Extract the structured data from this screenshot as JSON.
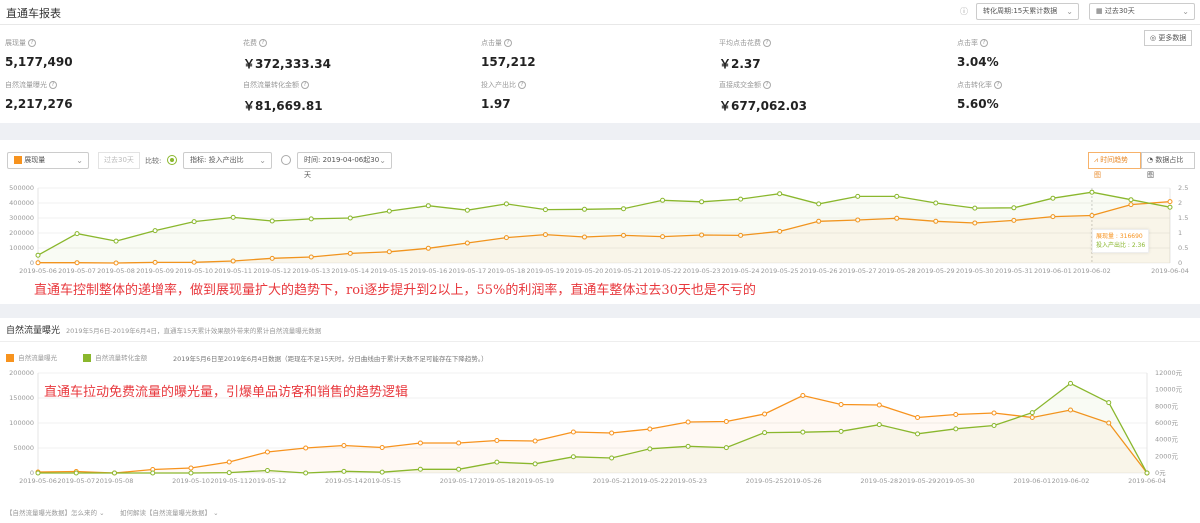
{
  "header": {
    "title": "直通车报表",
    "info_icon": "info-circle-icon",
    "conversion_select": "转化周期:15天累计数据",
    "date_select": "过去30天",
    "calendar_icon": "calendar-icon",
    "more_data_button": "更多数据"
  },
  "metrics": [
    {
      "label": "展现量",
      "value": "5,177,490"
    },
    {
      "label": "花费",
      "value": "￥372,333.34"
    },
    {
      "label": "点击量",
      "value": "157,212"
    },
    {
      "label": "平均点击花费",
      "value": "￥2.37"
    },
    {
      "label": "点击率",
      "value": "3.04%"
    },
    {
      "label": "自然流量曝光",
      "value": "2,217,276"
    },
    {
      "label": "自然流量转化金额",
      "value": "￥81,669.81"
    },
    {
      "label": "投入产出比",
      "value": "1.97"
    },
    {
      "label": "直接成交金额",
      "value": "￥677,062.03"
    },
    {
      "label": "点击转化率",
      "value": "5.60%"
    }
  ],
  "trend": {
    "metric_select": "展现量",
    "period_button": "过去30天",
    "compare_label": "比较:",
    "indicator_select": "指标:  投入产出比",
    "time_select": "时间:  2019-04-06起30天",
    "view_trend": "时间趋势图",
    "view_ratio": "数据占比图",
    "tooltip": {
      "label1": "展现量 : 316690",
      "label2": "投入产出比 : 2.36"
    },
    "annotation": "直通车控制整体的递增率，做到展现量扩大的趋势下，roi逐步提升到2以上，55%的利润率，直通车整体过去30天也是不亏的"
  },
  "natural": {
    "title": "自然流量曝光",
    "subtitle": "2019年5月6日-2019年6月4日，直通车15天累计效果额外带来的累计自然流量曝光数据",
    "legend": [
      "自然流量曝光",
      "自然流量转化金额"
    ],
    "legend_note": "2019年5月6日至2019年6月4日数据（距现在不足15天时，分日曲线由于累计天数不足可能存在下降趋势。）",
    "annotation": "直通车拉动免费流量的曝光量，引爆单品访客和销售的趋势逻辑",
    "link1": "【自然流量曝光数据】怎么来的",
    "link2": "如何解读【自然流量曝光数据】"
  },
  "colors": {
    "orange": "#f7931e",
    "green": "#8ab72d",
    "annotation": "#e8383d"
  },
  "chart_data": [
    {
      "type": "line",
      "x": [
        "2019-05-06",
        "2019-05-07",
        "2019-05-08",
        "2019-05-09",
        "2019-05-10",
        "2019-05-11",
        "2019-05-12",
        "2019-05-13",
        "2019-05-14",
        "2019-05-15",
        "2019-05-16",
        "2019-05-17",
        "2019-05-18",
        "2019-05-19",
        "2019-05-20",
        "2019-05-21",
        "2019-05-22",
        "2019-05-23",
        "2019-05-24",
        "2019-05-25",
        "2019-05-26",
        "2019-05-27",
        "2019-05-28",
        "2019-05-29",
        "2019-05-30",
        "2019-05-31",
        "2019-06-01",
        "2019-06-02",
        "2019-06-03",
        "2019-06-04"
      ],
      "x_tick_labels": [
        "2019-05-06",
        "2019-05-07",
        "2019-05-08",
        "2019-05-09",
        "2019-05-10",
        "2019-05-11",
        "2019-05-12",
        "2019-05-13",
        "2019-05-14",
        "2019-05-15",
        "2019-05-16",
        "2019-05-17",
        "2019-05-18",
        "2019-05-19",
        "2019-05-20",
        "2019-05-21",
        "2019-05-22",
        "2019-05-23",
        "2019-05-24",
        "2019-05-25",
        "2019-05-26",
        "2019-05-27",
        "2019-05-28",
        "2019-05-29",
        "2019-05-30",
        "2019-05-31",
        "2019-06-01",
        "2019-06-02",
        "2019-06-04"
      ],
      "y_left": {
        "ticks": [
          "0",
          "100000",
          "200000",
          "300000",
          "400000",
          "500000"
        ],
        "ylim": [
          0,
          500000
        ]
      },
      "y_right": {
        "ticks": [
          "0",
          "0.5",
          "1",
          "1.5",
          "2",
          "2.5"
        ],
        "ylim": [
          0,
          2.5
        ]
      },
      "series": [
        {
          "name": "展现量",
          "axis": "left",
          "color": "#f7931e",
          "values": [
            2000,
            2000,
            0,
            4000,
            5000,
            13000,
            31000,
            40000,
            64000,
            75000,
            98000,
            133000,
            169000,
            189000,
            173000,
            184000,
            176000,
            187000,
            184000,
            211000,
            278000,
            287000,
            298000,
            278000,
            267000,
            284000,
            309000,
            316690,
            389000,
            409000
          ]
        },
        {
          "name": "投入产出比",
          "axis": "right",
          "color": "#8ab72d",
          "values": [
            0.26,
            0.98,
            0.73,
            1.08,
            1.38,
            1.52,
            1.4,
            1.47,
            1.5,
            1.73,
            1.91,
            1.76,
            1.97,
            1.78,
            1.79,
            1.81,
            2.09,
            2.04,
            2.13,
            2.31,
            1.97,
            2.22,
            2.22,
            2.0,
            1.83,
            1.84,
            2.16,
            2.36,
            2.11,
            1.86
          ]
        }
      ],
      "highlight": "2019-06-02",
      "grid": true
    },
    {
      "type": "line",
      "x": [
        "2019-05-06",
        "2019-05-07",
        "2019-05-08",
        "2019-05-09",
        "2019-05-10",
        "2019-05-11",
        "2019-05-12",
        "2019-05-13",
        "2019-05-14",
        "2019-05-15",
        "2019-05-16",
        "2019-05-17",
        "2019-05-18",
        "2019-05-19",
        "2019-05-20",
        "2019-05-21",
        "2019-05-22",
        "2019-05-23",
        "2019-05-24",
        "2019-05-25",
        "2019-05-26",
        "2019-05-27",
        "2019-05-28",
        "2019-05-29",
        "2019-05-30",
        "2019-05-31",
        "2019-06-01",
        "2019-06-02",
        "2019-06-03",
        "2019-06-04"
      ],
      "x_tick_labels": [
        "2019-05-06",
        "2019-05-07",
        "2019-05-08",
        "",
        "2019-05-10",
        "2019-05-11",
        "2019-05-12",
        "",
        "2019-05-14",
        "2019-05-15",
        "",
        "2019-05-17",
        "2019-05-18",
        "2019-05-19",
        "",
        "2019-05-21",
        "2019-05-22",
        "2019-05-23",
        "",
        "2019-05-25",
        "2019-05-26",
        "",
        "2019-05-28",
        "2019-05-29",
        "2019-05-30",
        "",
        "2019-06-01",
        "2019-06-02",
        "",
        "2019-06-04"
      ],
      "y_left": {
        "ticks": [
          "0",
          "50000",
          "100000",
          "150000",
          "200000"
        ],
        "ylim": [
          0,
          200000
        ]
      },
      "y_right": {
        "ticks": [
          "0元",
          "2000元",
          "4000元",
          "6000元",
          "8000元",
          "10000元",
          "12000元"
        ],
        "ylim": [
          0,
          12000
        ]
      },
      "series": [
        {
          "name": "自然流量曝光",
          "axis": "left",
          "color": "#f7931e",
          "values": [
            2000,
            3000,
            0,
            7000,
            10000,
            22000,
            42000,
            50000,
            55000,
            51000,
            60000,
            60000,
            65000,
            64000,
            82000,
            80000,
            88000,
            102000,
            103000,
            118000,
            155000,
            137000,
            136000,
            111000,
            117000,
            120000,
            111000,
            126000,
            100000,
            0
          ]
        },
        {
          "name": "自然流量转化金额",
          "axis": "right",
          "color": "#8ab72d",
          "values": [
            0,
            0,
            0,
            0,
            0,
            50,
            300,
            0,
            200,
            100,
            450,
            450,
            1300,
            1100,
            1950,
            1800,
            2900,
            3200,
            3050,
            4850,
            4900,
            5000,
            5800,
            4700,
            5300,
            5700,
            7250,
            10750,
            8450,
            0
          ]
        }
      ],
      "grid": true
    }
  ]
}
